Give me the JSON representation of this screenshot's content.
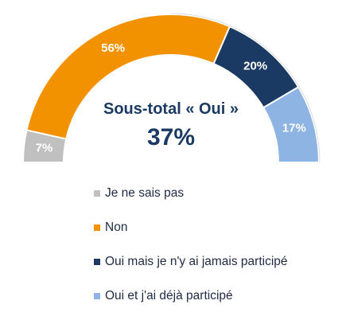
{
  "chart_data": {
    "type": "pie",
    "subtype": "half-donut",
    "categories": [
      "Je ne sais pas",
      "Non",
      "Oui mais je n'y ai jamais participé",
      "Oui et j'ai déjà participé"
    ],
    "values": [
      7,
      56,
      20,
      17
    ],
    "value_labels": [
      "7%",
      "56%",
      "20%",
      "17%"
    ],
    "colors": [
      "#c0c0c0",
      "#f39200",
      "#1b3a63",
      "#8db4e2"
    ],
    "center_title": "Sous-total « Oui »",
    "center_value": "37%",
    "center_color": "#1b3a63",
    "legend_position": "bottom"
  }
}
